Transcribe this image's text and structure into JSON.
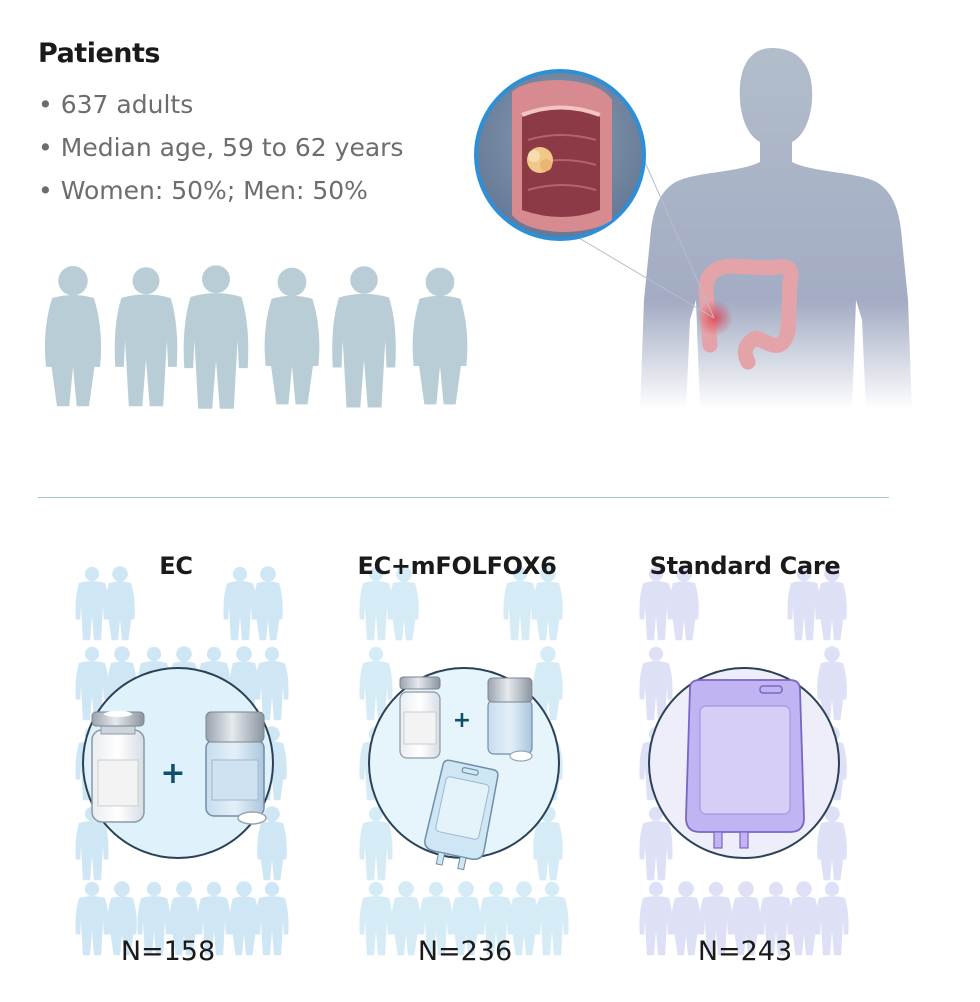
{
  "patients": {
    "title": "Patients",
    "bullets": [
      "637 adults",
      "Median age, 59 to 62 years",
      "Women: 50%; Men: 50%"
    ]
  },
  "arms": [
    {
      "label": "EC",
      "n": "N=158"
    },
    {
      "label": "EC+mFOLFOX6",
      "n": "N=236"
    },
    {
      "label": "Standard Care",
      "n": "N=243"
    }
  ],
  "colors": {
    "silhouette": "#b9cdd7",
    "ec_crowd": "#a9d3ee",
    "ec_circle": "#dff1fb",
    "mfolfox_crowd": "#b4dbee",
    "mfolfox_circle": "#e6f5fb",
    "standard_crowd": "#c9cdf0",
    "standard_circle": "#edeefa",
    "plus": "#0f4f6b",
    "iv_bag_purple": "#c2b4f2",
    "colon": "#e3a3a8"
  }
}
